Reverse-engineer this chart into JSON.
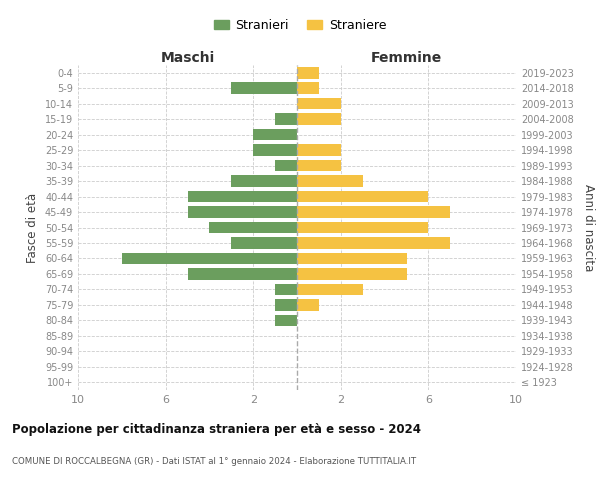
{
  "age_groups": [
    "100+",
    "95-99",
    "90-94",
    "85-89",
    "80-84",
    "75-79",
    "70-74",
    "65-69",
    "60-64",
    "55-59",
    "50-54",
    "45-49",
    "40-44",
    "35-39",
    "30-34",
    "25-29",
    "20-24",
    "15-19",
    "10-14",
    "5-9",
    "0-4"
  ],
  "birth_years": [
    "≤ 1923",
    "1924-1928",
    "1929-1933",
    "1934-1938",
    "1939-1943",
    "1944-1948",
    "1949-1953",
    "1954-1958",
    "1959-1963",
    "1964-1968",
    "1969-1973",
    "1974-1978",
    "1979-1983",
    "1984-1988",
    "1989-1993",
    "1994-1998",
    "1999-2003",
    "2004-2008",
    "2009-2013",
    "2014-2018",
    "2019-2023"
  ],
  "maschi": [
    0,
    0,
    0,
    0,
    1,
    1,
    1,
    5,
    8,
    3,
    4,
    5,
    5,
    3,
    1,
    2,
    2,
    1,
    0,
    3,
    0
  ],
  "femmine": [
    0,
    0,
    0,
    0,
    0,
    1,
    3,
    5,
    5,
    7,
    6,
    7,
    6,
    3,
    2,
    2,
    0,
    2,
    2,
    1,
    1
  ],
  "color_maschi": "#6b9e5e",
  "color_femmine": "#f5c242",
  "title": "Popolazione per cittadinanza straniera per età e sesso - 2024",
  "subtitle": "COMUNE DI ROCCALBEGNA (GR) - Dati ISTAT al 1° gennaio 2024 - Elaborazione TUTTITALIA.IT",
  "xlabel_left": "Maschi",
  "xlabel_right": "Femmine",
  "ylabel_left": "Fasce di età",
  "ylabel_right": "Anni di nascita",
  "legend_maschi": "Stranieri",
  "legend_femmine": "Straniere",
  "xlim": 10,
  "bg_color": "#ffffff",
  "grid_color": "#cccccc"
}
